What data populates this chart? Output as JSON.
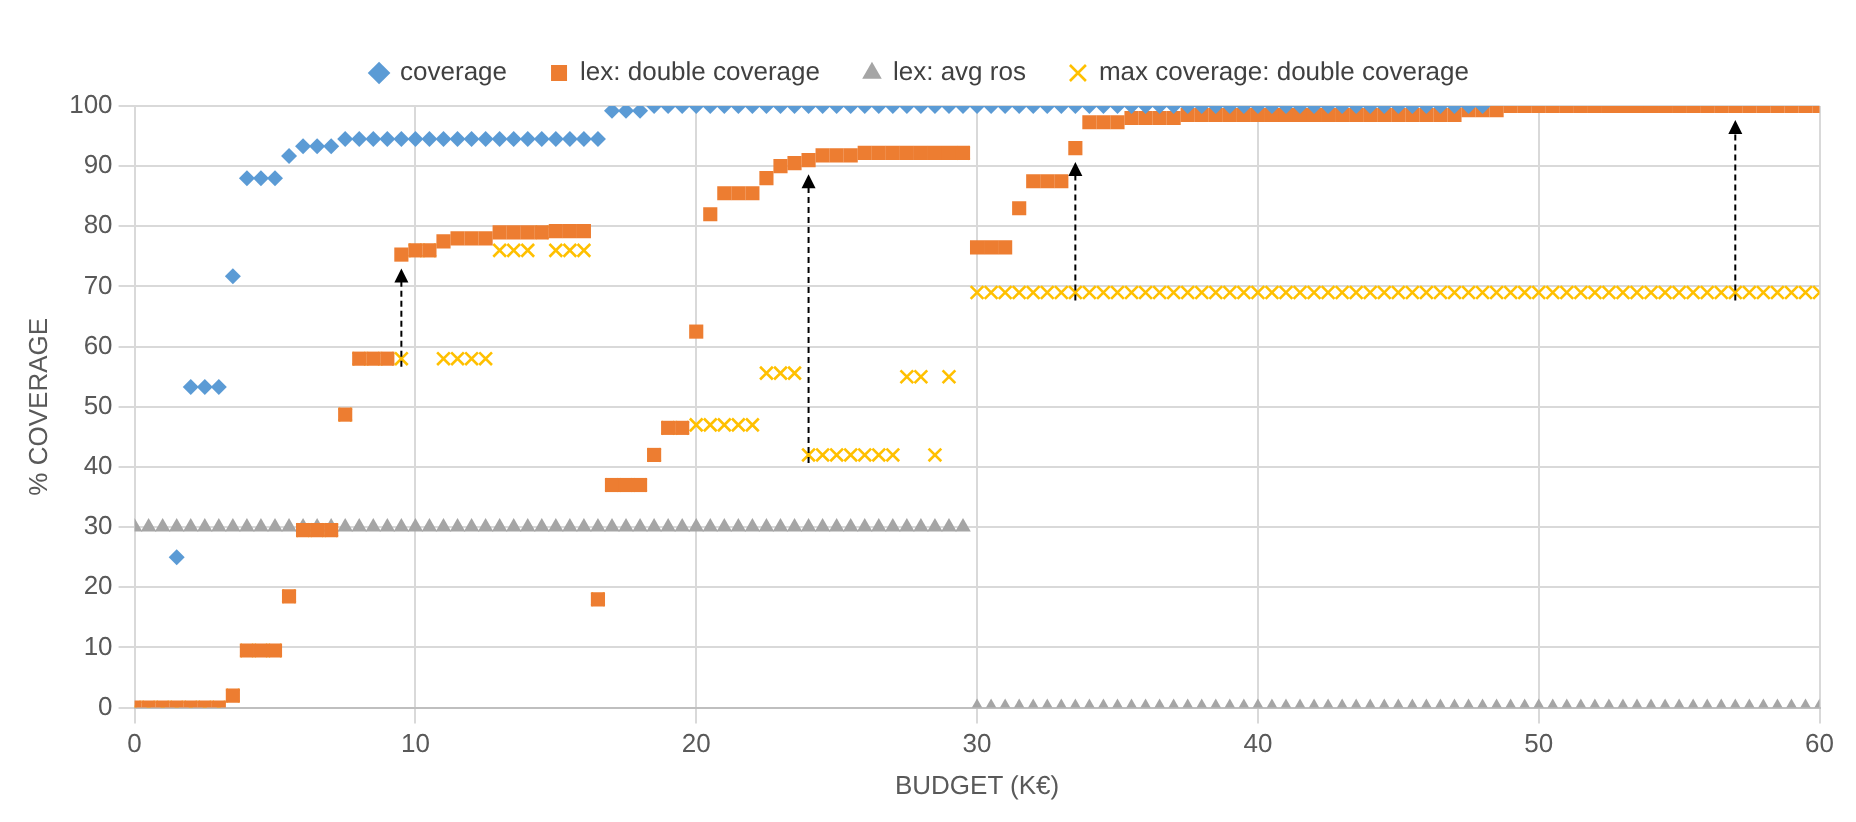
{
  "chart_data": {
    "type": "scatter",
    "xlabel": "BUDGET (K€)",
    "ylabel": "% COVERAGE",
    "legend": "top",
    "grid": true,
    "xlim": [
      0,
      60
    ],
    "xticks": [
      0,
      10,
      20,
      30,
      40,
      50,
      60
    ],
    "ylim": [
      0,
      100
    ],
    "yticks": [
      0,
      10,
      20,
      30,
      40,
      50,
      60,
      70,
      80,
      90,
      100
    ],
    "x": [
      0,
      0.5,
      1,
      1.5,
      2,
      2.5,
      3,
      3.5,
      4,
      4.5,
      5,
      5.5,
      6,
      6.5,
      7,
      7.5,
      8,
      8.5,
      9,
      9.5,
      10,
      10.5,
      11,
      11.5,
      12,
      12.5,
      13,
      13.5,
      14,
      14.5,
      15,
      15.5,
      16,
      16.5,
      17,
      17.5,
      18,
      18.5,
      19,
      19.5,
      20,
      20.5,
      21,
      21.5,
      22,
      22.5,
      23,
      23.5,
      24,
      24.5,
      25,
      25.5,
      26,
      26.5,
      27,
      27.5,
      28,
      28.5,
      29,
      29.5,
      30,
      30.5,
      31,
      31.5,
      32,
      32.5,
      33,
      33.5,
      34,
      34.5,
      35,
      35.5,
      36,
      36.5,
      37,
      37.5,
      38,
      38.5,
      39,
      39.5,
      40,
      40.5,
      41,
      41.5,
      42,
      42.5,
      43,
      43.5,
      44,
      44.5,
      45,
      45.5,
      46,
      46.5,
      47,
      47.5,
      48,
      48.5,
      49,
      49.5,
      50,
      50.5,
      51,
      51.5,
      52,
      52.5,
      53,
      53.5,
      54,
      54.5,
      55,
      55.5,
      56,
      56.5,
      57,
      57.5,
      58,
      58.5,
      59,
      59.5,
      60
    ],
    "series": [
      {
        "name": "coverage",
        "color": "#5b9bd5",
        "marker": "diamond",
        "x": [
          1.5,
          2,
          2.5,
          3,
          3.5,
          4,
          4.5,
          5,
          5.5,
          6,
          6.5,
          7,
          7.5,
          8,
          8.5,
          9,
          9.5,
          10,
          10.5,
          11,
          11.5,
          12,
          12.5,
          13,
          13.5,
          14,
          14.5,
          15,
          15.5,
          16,
          16.5,
          17,
          17.5,
          18,
          18.5,
          19,
          19.5,
          20,
          20.5,
          21,
          21.5,
          22,
          22.5,
          23,
          23.5,
          24,
          24.5,
          25,
          25.5,
          26,
          26.5,
          27,
          27.5,
          28,
          28.5,
          29,
          29.5,
          30,
          30.5,
          31,
          31.5,
          32,
          32.5,
          33,
          33.5,
          34,
          34.5,
          35,
          35.5,
          36,
          36.5,
          37,
          37.5,
          38,
          38.5,
          39,
          39.5,
          40,
          40.5,
          41,
          41.5,
          42,
          42.5,
          43,
          43.5,
          44,
          44.5,
          45,
          45.5,
          46,
          46.5,
          47,
          47.5,
          48
        ],
        "values": [
          25,
          53.3,
          53.3,
          53.3,
          71.7,
          88,
          88,
          88,
          91.7,
          93.3,
          93.3,
          93.3,
          94.5,
          94.5,
          94.5,
          94.5,
          94.5,
          94.5,
          94.5,
          94.5,
          94.5,
          94.5,
          94.5,
          94.5,
          94.5,
          94.5,
          94.5,
          94.5,
          94.5,
          94.5,
          94.5,
          99.2,
          99.2,
          99.2,
          100,
          100,
          100,
          100,
          100,
          100,
          100,
          100,
          100,
          100,
          100,
          100,
          100,
          100,
          100,
          100,
          100,
          100,
          100,
          100,
          100,
          100,
          100,
          100,
          100,
          100,
          100,
          100,
          100,
          100,
          100,
          100,
          100,
          100,
          100,
          100,
          100,
          100,
          100,
          100,
          100,
          100,
          100,
          100,
          100,
          100,
          100,
          100,
          100,
          100,
          100,
          100,
          100,
          100,
          100,
          100,
          100,
          100,
          100,
          100
        ]
      },
      {
        "name": "lex: double coverage",
        "color": "#ed7d31",
        "marker": "square",
        "values": [
          0,
          0,
          0,
          0,
          0,
          0,
          0,
          2,
          9.5,
          9.5,
          9.5,
          18.5,
          29.5,
          29.5,
          29.5,
          48.7,
          58,
          58,
          58,
          75.3,
          76,
          76,
          77.5,
          78,
          78,
          78,
          79,
          79,
          79,
          79,
          79.2,
          79.2,
          79.2,
          18,
          37,
          37,
          37,
          42,
          46.5,
          46.5,
          62.5,
          82,
          85.5,
          85.5,
          85.5,
          88,
          90,
          90.5,
          91,
          91.8,
          91.8,
          91.8,
          92.2,
          92.2,
          92.2,
          92.2,
          92.2,
          92.2,
          92.2,
          92.2,
          76.5,
          76.5,
          76.5,
          83,
          87.5,
          87.5,
          87.5,
          93,
          97.3,
          97.3,
          97.3,
          98,
          98,
          98,
          98,
          98.5,
          98.5,
          98.5,
          98.5,
          98.5,
          98.5,
          98.5,
          98.5,
          98.5,
          98.5,
          98.5,
          98.5,
          98.5,
          98.5,
          98.5,
          98.5,
          98.5,
          98.5,
          98.5,
          98.5,
          99.3,
          99.3,
          99.3,
          100,
          100,
          100,
          100,
          100,
          100,
          100,
          100,
          100,
          100,
          100,
          100,
          100,
          100,
          100,
          100,
          100,
          100,
          100,
          100,
          100,
          100,
          100
        ]
      },
      {
        "name": "lex: avg ros",
        "color": "#a5a5a5",
        "marker": "triangle",
        "values": [
          30,
          30,
          30,
          30,
          30,
          30,
          30,
          30,
          30,
          30,
          30,
          30,
          30,
          30,
          30,
          30,
          30,
          30,
          30,
          30,
          30,
          30,
          30,
          30,
          30,
          30,
          30,
          30,
          30,
          30,
          30,
          30,
          30,
          30,
          30,
          30,
          30,
          30,
          30,
          30,
          30,
          30,
          30,
          30,
          30,
          30,
          30,
          30,
          30,
          30,
          30,
          30,
          30,
          30,
          30,
          30,
          30,
          30,
          30,
          30,
          0,
          0,
          0,
          0,
          0,
          0,
          0,
          0,
          0,
          0,
          0,
          0,
          0,
          0,
          0,
          0,
          0,
          0,
          0,
          0,
          0,
          0,
          0,
          0,
          0,
          0,
          0,
          0,
          0,
          0,
          0,
          0,
          0,
          0,
          0,
          0,
          0,
          0,
          0,
          0,
          0,
          0,
          0,
          0,
          0,
          0,
          0,
          0,
          0,
          0,
          0,
          0,
          0,
          0,
          0,
          0,
          0,
          0,
          0,
          0,
          0
        ]
      },
      {
        "name": "max coverage: double coverage",
        "color": "#ffc000",
        "marker": "cross",
        "values": [
          0,
          0,
          0,
          0,
          0,
          0,
          0,
          2,
          9.5,
          9.5,
          9.5,
          18.5,
          29.5,
          29.5,
          29.5,
          48.7,
          58,
          58,
          58,
          58,
          76,
          76,
          58,
          58,
          58,
          58,
          76,
          76,
          76,
          79,
          76,
          76,
          76,
          18,
          37,
          37,
          37,
          42,
          46.5,
          46.5,
          47,
          47,
          47,
          47,
          47,
          55.6,
          55.6,
          55.6,
          42,
          42,
          42,
          42,
          42,
          42,
          42,
          55,
          55,
          42,
          55,
          92.2,
          69,
          69,
          69,
          69,
          69,
          69,
          69,
          69,
          69,
          69,
          69,
          69,
          69,
          69,
          69,
          69,
          69,
          69,
          69,
          69,
          69,
          69,
          69,
          69,
          69,
          69,
          69,
          69,
          69,
          69,
          69,
          69,
          69,
          69,
          69,
          69,
          69,
          69,
          69,
          69,
          69,
          69,
          69,
          69,
          69,
          69,
          69,
          69,
          69,
          69,
          69,
          69,
          69,
          69,
          69,
          69,
          69,
          69,
          69,
          69,
          69
        ]
      }
    ]
  }
}
